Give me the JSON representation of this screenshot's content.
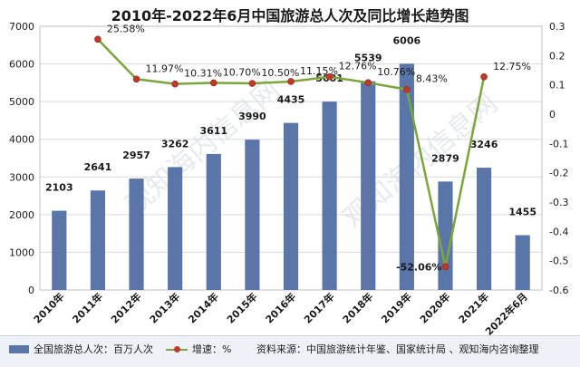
{
  "chart_data": {
    "type": "bar+line",
    "title": "2010年-2022年6月中国旅游总人次及同比增长趋势图",
    "categories": [
      "2010年",
      "2011年",
      "2012年",
      "2013年",
      "2014年",
      "2015年",
      "2016年",
      "2017年",
      "2018年",
      "2019年",
      "2020年",
      "2021年",
      "2022年6月"
    ],
    "series": [
      {
        "name": "全国旅游总人次：百万人次",
        "type": "bar",
        "axis": "left",
        "color": "#5a76a8",
        "values": [
          2103,
          2641,
          2957,
          3262,
          3611,
          3990,
          4435,
          5001,
          5539,
          6006,
          2879,
          3246,
          1455
        ],
        "labels": [
          "2103",
          "2641",
          "2957",
          "3262",
          "3611",
          "3990",
          "4435",
          "5001",
          "5539",
          "6006",
          "2879",
          "3246",
          "1455"
        ]
      },
      {
        "name": "增速：%",
        "type": "line",
        "axis": "right",
        "color": "#7aa63a",
        "marker_color": "#c0392b",
        "values": [
          null,
          0.2558,
          0.1197,
          0.1031,
          0.107,
          0.105,
          0.1115,
          0.1276,
          0.1076,
          0.0843,
          -0.5206,
          0.1275,
          null
        ],
        "labels": [
          null,
          "25.58%",
          "11.97%",
          "10.31%",
          "10.70%",
          "10.50%",
          "11.15%",
          "12.76%",
          "10.76%",
          "8.43%",
          "-52.06%",
          "12.75%",
          null
        ]
      }
    ],
    "y_left": {
      "min": 0,
      "max": 7000,
      "ticks": [
        "0",
        "1000",
        "2000",
        "3000",
        "4000",
        "5000",
        "6000",
        "7000"
      ]
    },
    "y_right": {
      "min": -0.6,
      "max": 0.3,
      "ticks": [
        "0.3",
        "0.2",
        "0.1",
        "0",
        "-0.1",
        "-0.2",
        "-0.3",
        "-0.4",
        "-0.5",
        "-0.6"
      ]
    },
    "grid": true,
    "legend_position": "bottom"
  },
  "legend": {
    "bar_label": "全国旅游总人次：百万人次",
    "line_label": "增速：%"
  },
  "source_note": "资料来源：中国旅游统计年鉴、国家统计局 、观知海内咨询整理",
  "watermark": "观知海内信息网",
  "colors": {
    "bar": "#5a76a8",
    "line": "#7aa63a",
    "marker": "#c0392b",
    "grid": "#d9d9d9"
  }
}
